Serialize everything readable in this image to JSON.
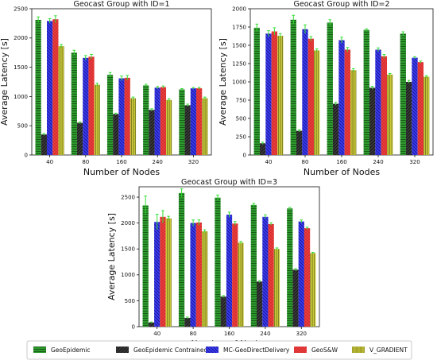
{
  "chart_data": [
    {
      "type": "bar",
      "title": "Geocast Group with ID=1",
      "xlabel": "Number of Nodes",
      "ylabel": "Average Latency [s]",
      "categories": [
        "40",
        "80",
        "160",
        "240",
        "320"
      ],
      "ylim": [
        0,
        2500
      ],
      "yticks": [
        0,
        500,
        1000,
        1500,
        2000,
        2500
      ],
      "series": [
        {
          "name": "GeoEpidemic",
          "values": [
            2310,
            1750,
            1370,
            1190,
            1120
          ],
          "err": [
            50,
            40,
            40,
            20,
            15
          ]
        },
        {
          "name": "GeoEpidemic Contrained",
          "values": [
            350,
            550,
            700,
            770,
            850
          ],
          "err": [
            15,
            15,
            15,
            20,
            20
          ]
        },
        {
          "name": "MC-GeoDirectDelivery",
          "values": [
            2290,
            1660,
            1310,
            1150,
            1140
          ],
          "err": [
            40,
            40,
            40,
            20,
            15
          ]
        },
        {
          "name": "GeoS&W",
          "values": [
            2320,
            1680,
            1320,
            1160,
            1140
          ],
          "err": [
            60,
            40,
            40,
            20,
            15
          ]
        },
        {
          "name": "V_GRADIENT",
          "values": [
            1860,
            1200,
            970,
            940,
            970
          ],
          "err": [
            30,
            25,
            20,
            20,
            20
          ]
        }
      ]
    },
    {
      "type": "bar",
      "title": "Geocast Group with ID=2",
      "xlabel": "Number of Nodes",
      "ylabel": "Average Latency [s]",
      "categories": [
        "40",
        "80",
        "160",
        "240",
        "320"
      ],
      "ylim": [
        0,
        2000
      ],
      "yticks": [
        0,
        250,
        500,
        750,
        1000,
        1250,
        1500,
        1750,
        2000
      ],
      "series": [
        {
          "name": "GeoEpidemic",
          "values": [
            1740,
            1850,
            1810,
            1710,
            1660
          ],
          "err": [
            50,
            60,
            40,
            15,
            25
          ]
        },
        {
          "name": "GeoEpidemic Contrained",
          "values": [
            160,
            330,
            700,
            920,
            1000
          ],
          "err": [
            15,
            15,
            20,
            20,
            20
          ]
        },
        {
          "name": "MC-GeoDirectDelivery",
          "values": [
            1660,
            1720,
            1570,
            1440,
            1330
          ],
          "err": [
            40,
            60,
            40,
            25,
            15
          ]
        },
        {
          "name": "GeoS&W",
          "values": [
            1690,
            1590,
            1440,
            1350,
            1270
          ],
          "err": [
            50,
            30,
            30,
            25,
            15
          ]
        },
        {
          "name": "V_GRADIENT",
          "values": [
            1630,
            1430,
            1160,
            1100,
            1070
          ],
          "err": [
            30,
            20,
            20,
            15,
            15
          ]
        }
      ]
    },
    {
      "type": "bar",
      "title": "Geocast Group with ID=3",
      "xlabel": "Number of Nodes",
      "ylabel": "Average Latency [s]",
      "categories": [
        "40",
        "80",
        "160",
        "240",
        "320"
      ],
      "ylim": [
        0,
        2700
      ],
      "yticks": [
        0,
        500,
        1000,
        1500,
        2000,
        2500
      ],
      "series": [
        {
          "name": "GeoEpidemic",
          "values": [
            2340,
            2580,
            2490,
            2350,
            2280
          ],
          "err": [
            180,
            80,
            50,
            30,
            20
          ]
        },
        {
          "name": "GeoEpidemic Contrained",
          "values": [
            80,
            170,
            580,
            870,
            1100
          ],
          "err": [
            10,
            15,
            20,
            20,
            20
          ]
        },
        {
          "name": "MC-GeoDirectDelivery",
          "values": [
            2020,
            2000,
            2160,
            2120,
            2030
          ],
          "err": [
            150,
            60,
            50,
            40,
            30
          ]
        },
        {
          "name": "GeoS&W",
          "values": [
            2120,
            2010,
            1990,
            1980,
            1900
          ],
          "err": [
            120,
            50,
            40,
            25,
            20
          ]
        },
        {
          "name": "V_GRADIENT",
          "values": [
            2090,
            1840,
            1620,
            1500,
            1420
          ],
          "err": [
            40,
            30,
            25,
            20,
            15
          ]
        }
      ]
    }
  ],
  "legend": {
    "placement": "bottom",
    "entries": [
      "GeoEpidemic",
      "GeoEpidemic Contrained",
      "MC-GeoDirectDelivery",
      "GeoS&W",
      "V_GRADIENT"
    ]
  },
  "colors": {
    "GeoEpidemic": "#2e9a2e",
    "GeoEpidemic Contrained": "#3a3a3a",
    "MC-GeoDirectDelivery": "#3a3af0",
    "GeoS&W": "#ee3b3b",
    "V_GRADIENT": "#b9b92e",
    "errorbar": "#33dd33"
  }
}
